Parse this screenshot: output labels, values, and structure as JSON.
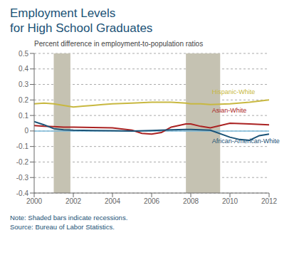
{
  "chart_data": {
    "type": "line",
    "title": [
      "Employment Levels",
      "for High School Graduates"
    ],
    "subtitle": "Percent difference in employment-to-population ratios",
    "notes": [
      "Note: Shaded bars indicate recessions.",
      "Source: Bureau of Labor Statistics."
    ],
    "title_color": "#1a5276",
    "subtitle_color": "#444444",
    "note_color": "#1a5276",
    "xlim": [
      2000,
      2012
    ],
    "ylim": [
      -0.4,
      0.5
    ],
    "xticks": [
      2000,
      2002,
      2004,
      2006,
      2008,
      2010,
      2012
    ],
    "yticks": [
      -0.4,
      -0.3,
      -0.2,
      -0.1,
      0,
      0.1,
      0.2,
      0.3,
      0.4,
      0.5
    ],
    "grid": true,
    "grid_color": "#aaaaaa",
    "zero_line_color": "#7ab8d9",
    "recession_bars": [
      [
        2001.0,
        2001.85
      ],
      [
        2007.75,
        2009.5
      ]
    ],
    "recession_color": "#c5c2b2",
    "series": [
      {
        "name": "Hispanic-White",
        "color": "#c8b840",
        "x": [
          2000,
          2000.5,
          2001,
          2001.5,
          2002,
          2002.5,
          2003,
          2003.5,
          2004,
          2005,
          2006,
          2007,
          2007.75,
          2008,
          2008.5,
          2009,
          2010,
          2011,
          2012
        ],
        "values": [
          0.175,
          0.18,
          0.175,
          0.165,
          0.155,
          0.16,
          0.165,
          0.17,
          0.175,
          0.18,
          0.185,
          0.185,
          0.18,
          0.175,
          0.175,
          0.17,
          0.175,
          0.185,
          0.2
        ]
      },
      {
        "name": "Asian-White",
        "color": "#aa2222",
        "x": [
          2000,
          2000.5,
          2001,
          2001.5,
          2002,
          2003,
          2004,
          2005,
          2005.5,
          2006,
          2006.5,
          2007,
          2007.75,
          2008,
          2008.5,
          2009,
          2010,
          2010.5,
          2011,
          2012
        ],
        "values": [
          0.035,
          0.03,
          0.028,
          0.025,
          0.025,
          0.022,
          0.02,
          0.005,
          -0.015,
          -0.02,
          -0.01,
          0.025,
          0.045,
          0.045,
          0.03,
          0.02,
          0.05,
          0.048,
          0.045,
          0.04
        ]
      },
      {
        "name": "African-American-White",
        "color": "#1a5276",
        "x": [
          2000,
          2000.5,
          2001,
          2001.5,
          2002,
          2003,
          2004,
          2005,
          2006,
          2007,
          2007.75,
          2008,
          2009,
          2010,
          2010.5,
          2011,
          2011.5,
          2012
        ],
        "values": [
          0.06,
          0.04,
          0.015,
          0.008,
          0.005,
          0.003,
          0.002,
          0.0,
          0.003,
          0.008,
          0.01,
          0.01,
          0.005,
          -0.04,
          -0.055,
          -0.06,
          -0.03,
          -0.02
        ]
      }
    ],
    "annotations": [
      {
        "text": "Hispanic-White",
        "x": 2008.9,
        "y": 0.255
      },
      {
        "text": "Asian-White",
        "x": 2008.9,
        "y": 0.135
      },
      {
        "text": "African-American-White",
        "x": 2008.9,
        "y": -0.065
      }
    ]
  }
}
